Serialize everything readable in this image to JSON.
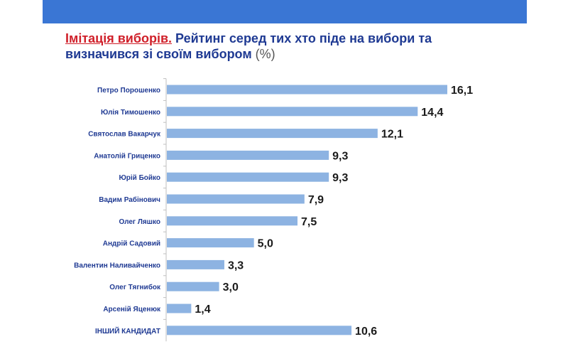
{
  "header": {
    "title_accent": "Імітація виборів.",
    "title_main": " Рейтинг серед тих хто піде на вибори та визначився зі своїм вибором",
    "title_unit": " (%)"
  },
  "colors": {
    "bar": "#8db3e2",
    "band": "#3a76d4",
    "title": "#1f3a93",
    "accent": "#d0202a"
  },
  "chart_data": {
    "type": "bar",
    "orientation": "horizontal",
    "title": "Імітація виборів. Рейтинг серед тих хто піде на вибори та визначився зі своїм вибором (%)",
    "categories": [
      "Петро Порошенко",
      "Юлія Тимошенко",
      "Святослав Вакарчук",
      "Анатолій Гриценко",
      "Юрій Бойко",
      "Вадим Рабінович",
      "Олег Ляшко",
      "Андрій Садовий",
      "Валентин Наливайченко",
      "Олег Тягнибок",
      "Арсеній Яценюк",
      "ІНШИЙ КАНДИДАТ"
    ],
    "values": [
      16.1,
      14.4,
      12.1,
      9.3,
      9.3,
      7.9,
      7.5,
      5.0,
      3.3,
      3.0,
      1.4,
      10.6
    ],
    "value_labels": [
      "16,1",
      "14,4",
      "12,1",
      "9,3",
      "9,3",
      "7,9",
      "7,5",
      "5,0",
      "3,3",
      "3,0",
      "1,4",
      "10,6"
    ],
    "xlim": [
      0,
      16.1
    ],
    "grid": false,
    "legend": "none"
  }
}
